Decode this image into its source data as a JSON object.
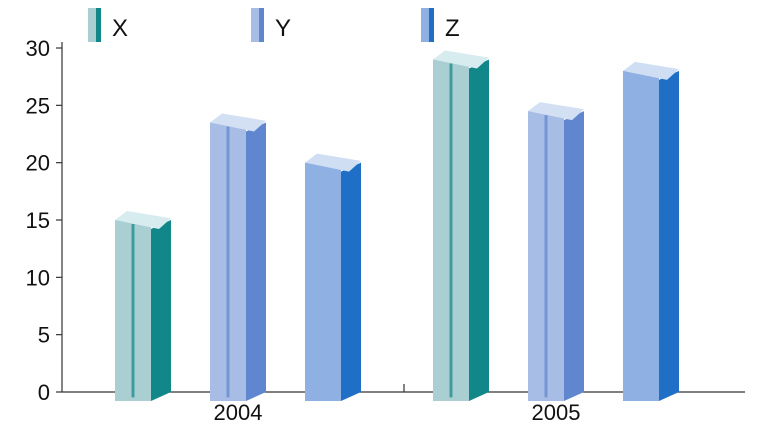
{
  "chart_data": {
    "type": "bar",
    "categories": [
      "2004",
      "2005"
    ],
    "series": [
      {
        "name": "X",
        "values": [
          15,
          29
        ],
        "colors": {
          "front": "#a9cfd3",
          "side": "#12878a",
          "top": "#d6ecee"
        }
      },
      {
        "name": "Y",
        "values": [
          23.5,
          24.5
        ],
        "colors": {
          "front": "#a8bde5",
          "side": "#5f86cf",
          "top": "#d3e0f4"
        }
      },
      {
        "name": "Z",
        "values": [
          20,
          28
        ],
        "colors": {
          "front": "#8fb0e2",
          "side": "#1f6fc6",
          "top": "#cfdef3"
        }
      }
    ],
    "ylim": [
      0,
      30
    ],
    "yticks": [
      0,
      5,
      10,
      15,
      20,
      25,
      30
    ],
    "title": "",
    "xlabel": "",
    "ylabel": "",
    "legend": "top-left",
    "grid": false
  }
}
